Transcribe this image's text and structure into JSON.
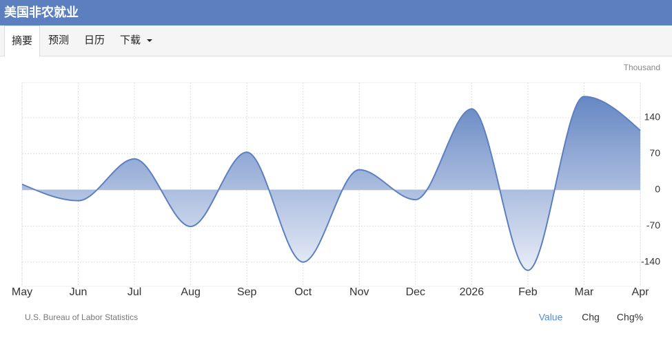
{
  "header": {
    "title": "美国非农就业"
  },
  "tabs": [
    "摘要",
    "预测",
    "日历",
    "下载"
  ],
  "chart_data": {
    "type": "line",
    "unit": "Thousand",
    "categories": [
      "May",
      "Jun",
      "Jul",
      "Aug",
      "Sep",
      "Oct",
      "Nov",
      "Dec",
      "2026",
      "Feb",
      "Mar",
      "Apr"
    ],
    "values": [
      11,
      -21,
      60,
      -71,
      73,
      -140,
      39,
      -19,
      157,
      -156,
      181,
      115
    ],
    "color": "#5b7fbf",
    "ylim": [
      -187,
      208
    ],
    "yticks": [
      -140,
      -70,
      0,
      70,
      140
    ],
    "grid": true
  },
  "footer": {
    "source": "U.S. Bureau of Labor Statistics",
    "toggles": [
      "Value",
      "Chg",
      "Chg%"
    ]
  }
}
